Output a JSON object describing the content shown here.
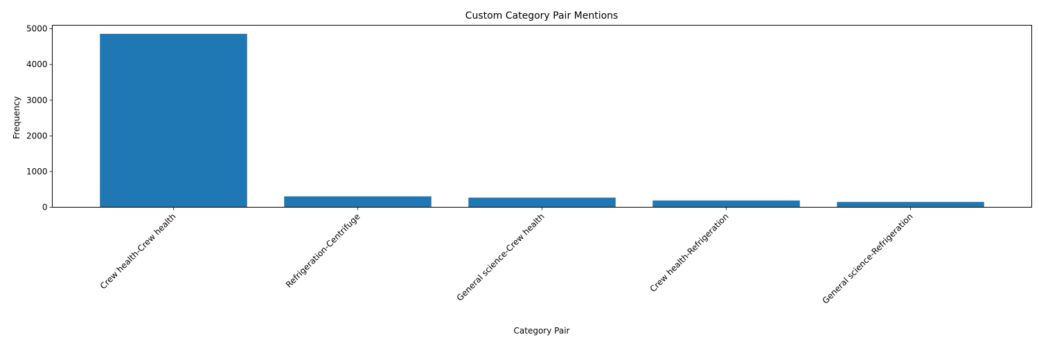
{
  "chart_data": {
    "type": "bar",
    "title": "Custom Category Pair Mentions",
    "xlabel": "Category Pair",
    "ylabel": "Frequency",
    "categories": [
      "Crew health-Crew health",
      "Refrigeration-Centrifuge",
      "General science-Crew health",
      "Crew health-Refrigeration",
      "General science-Refrigeration"
    ],
    "values": [
      4860,
      305,
      270,
      190,
      150
    ],
    "ylim": [
      0,
      5100
    ],
    "yticks": [
      0,
      1000,
      2000,
      3000,
      4000,
      5000
    ],
    "bar_color": "#1f77b4",
    "grid": false,
    "legend": "none"
  }
}
